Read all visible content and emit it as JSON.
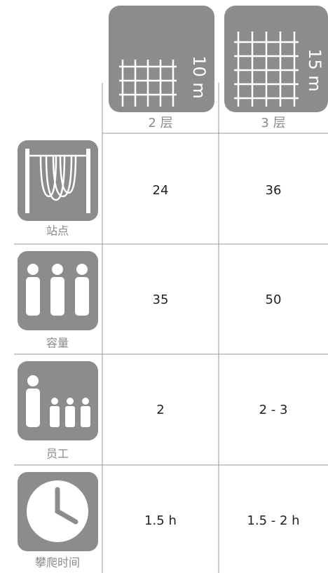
{
  "header": {
    "columns": [
      {
        "label": "2 层",
        "height": "10 m"
      },
      {
        "label": "3 层",
        "height": "15 m"
      }
    ]
  },
  "rows": [
    {
      "label": "站点",
      "values": [
        "24",
        "36"
      ]
    },
    {
      "label": "容量",
      "values": [
        "35",
        "50"
      ]
    },
    {
      "label": "员工",
      "values": [
        "2",
        "2 - 3"
      ]
    },
    {
      "label": "攀爬时间",
      "values": [
        "1.5 h",
        "1.5 - 2 h"
      ]
    }
  ]
}
